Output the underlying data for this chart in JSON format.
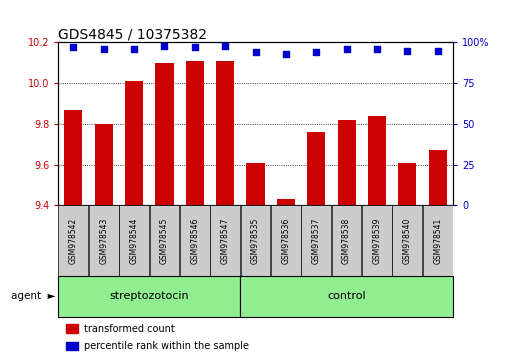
{
  "title": "GDS4845 / 10375382",
  "categories": [
    "GSM978542",
    "GSM978543",
    "GSM978544",
    "GSM978545",
    "GSM978546",
    "GSM978547",
    "GSM978535",
    "GSM978536",
    "GSM978537",
    "GSM978538",
    "GSM978539",
    "GSM978540",
    "GSM978541"
  ],
  "red_values": [
    9.87,
    9.8,
    10.01,
    10.1,
    10.11,
    10.11,
    9.61,
    9.43,
    9.76,
    9.82,
    9.84,
    9.61,
    9.67
  ],
  "blue_values": [
    97,
    96,
    96,
    98,
    97,
    98,
    94,
    93,
    94,
    96,
    96,
    95,
    95
  ],
  "ylim_left": [
    9.4,
    10.2
  ],
  "ylim_right": [
    0,
    100
  ],
  "yticks_left": [
    9.4,
    9.6,
    9.8,
    10.0,
    10.2
  ],
  "yticks_right": [
    0,
    25,
    50,
    75,
    100
  ],
  "group1_label": "streptozotocin",
  "group2_label": "control",
  "group1_count": 6,
  "group2_count": 7,
  "legend_red": "transformed count",
  "legend_blue": "percentile rank within the sample",
  "agent_label": "agent",
  "bar_color": "#cc0000",
  "dot_color": "#0000cc",
  "group_bg": "#90ee90",
  "bar_width": 0.6,
  "title_fontsize": 10,
  "tick_fontsize": 7,
  "cat_fontsize": 5.5,
  "group_fontsize": 8,
  "legend_fontsize": 7,
  "axis_label_color_left": "#cc0000",
  "axis_label_color_right": "#0000cc",
  "cat_box_color": "#cccccc",
  "agent_arrow": "►"
}
